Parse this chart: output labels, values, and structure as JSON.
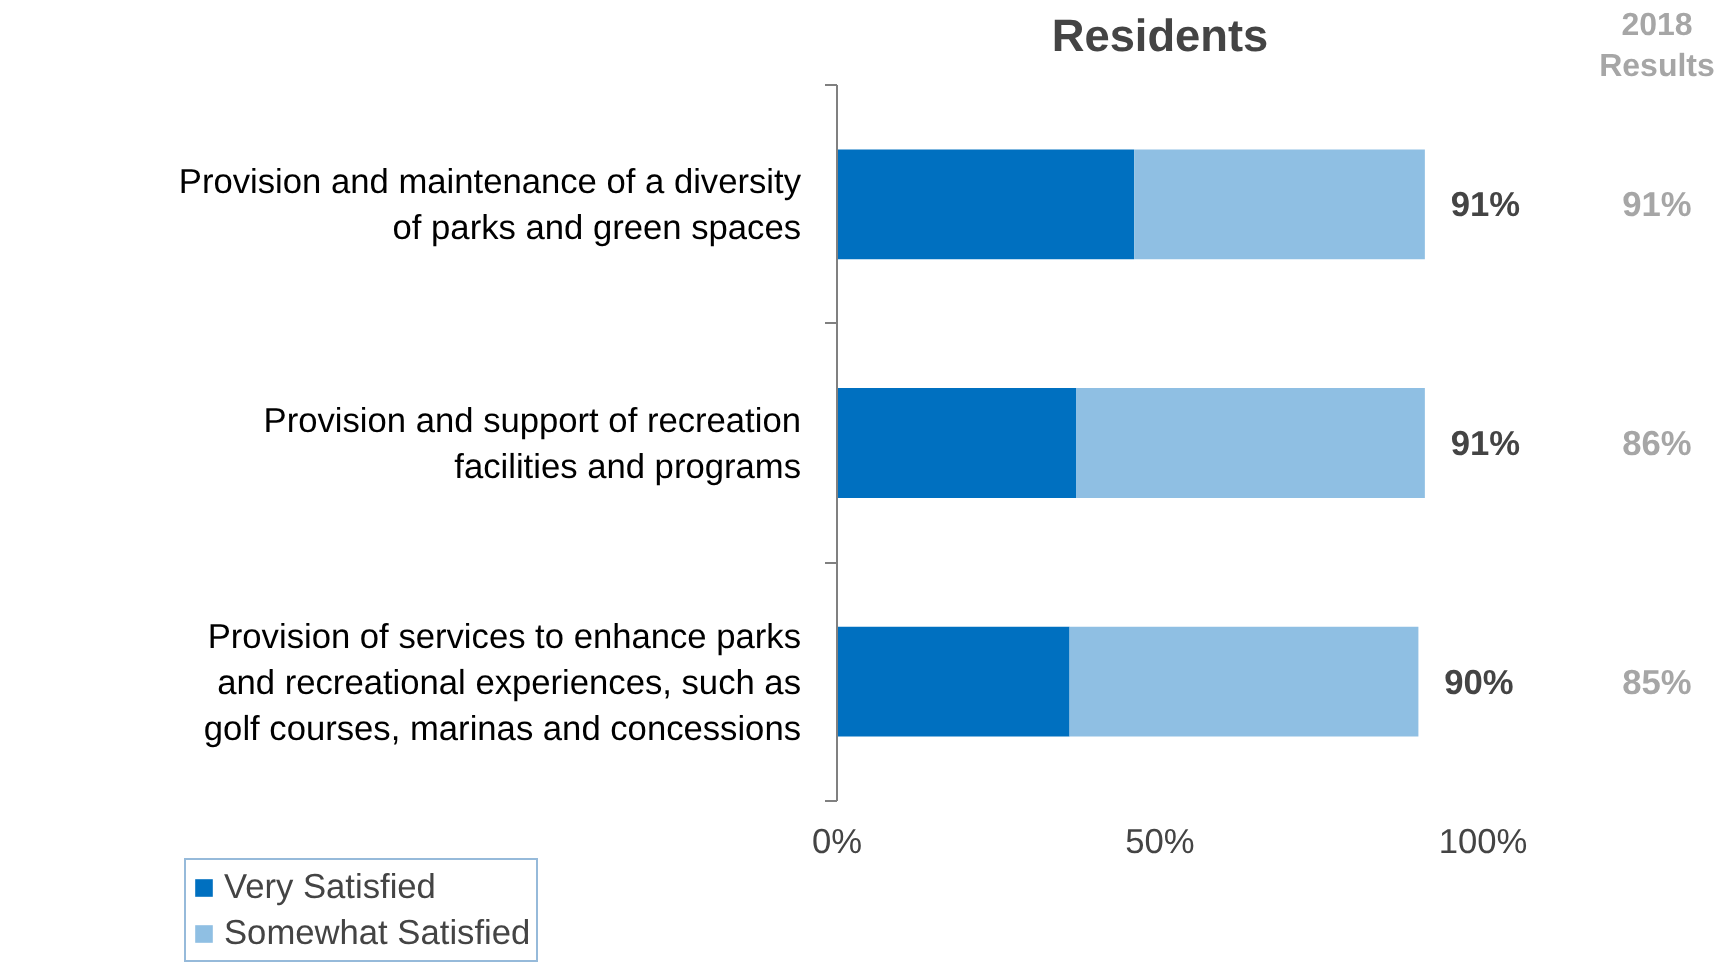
{
  "chart_data": {
    "type": "bar",
    "orientation": "horizontal",
    "stacked": true,
    "title": "Residents",
    "categories": [
      "Provision and maintenance of a diversity of parks and green spaces",
      "Provision and support of recreation facilities and programs",
      "Provision of services to enhance parks and recreational experiences, such as golf courses, marinas and concessions"
    ],
    "series": [
      {
        "name": "Very Satisfied",
        "color": "#0070c0",
        "values": [
          46,
          37,
          36
        ]
      },
      {
        "name": "Somewhat Satisfied",
        "color": "#8fbfe3",
        "values": [
          45,
          54,
          54
        ]
      }
    ],
    "totals": [
      "91%",
      "91%",
      "90%"
    ],
    "xlim": [
      0,
      100
    ],
    "xticks": [
      {
        "value": 0,
        "label": "0%"
      },
      {
        "value": 50,
        "label": "50%"
      },
      {
        "value": 100,
        "label": "100%"
      }
    ],
    "grid": false,
    "legend": "bottom left",
    "annotations": [
      "2018 Results",
      "91%",
      "86%",
      "85%"
    ]
  }
}
